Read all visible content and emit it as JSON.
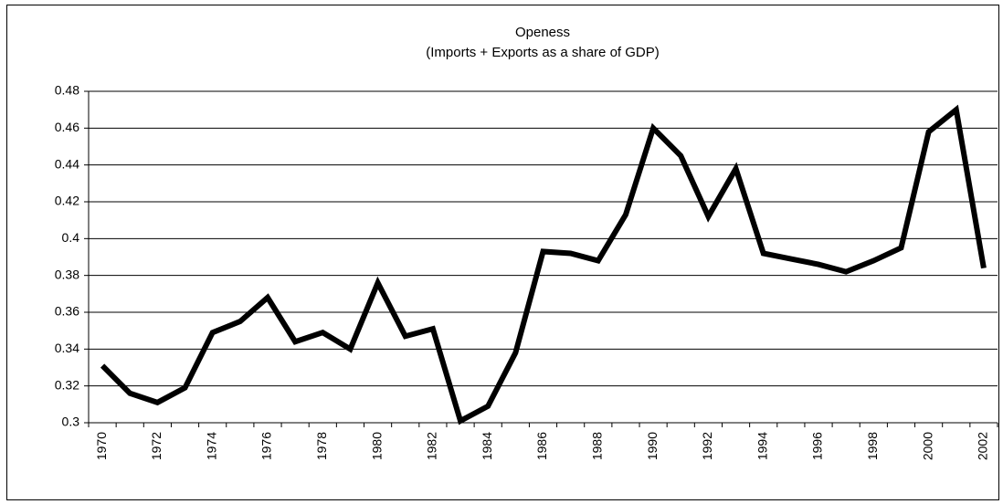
{
  "chart_data": {
    "type": "line",
    "title": "Openess",
    "subtitle": "(Imports + Exports as a share of GDP)",
    "categories": [
      "1970",
      null,
      "1972",
      null,
      "1974",
      null,
      "1976",
      null,
      "1978",
      null,
      "1980",
      null,
      "1982",
      null,
      "1984",
      null,
      "1986",
      null,
      "1988",
      null,
      "1990",
      null,
      "1992",
      null,
      "1994",
      null,
      "1996",
      null,
      "1998",
      null,
      "2000",
      null,
      "2002"
    ],
    "values": [
      0.331,
      0.316,
      0.311,
      0.319,
      0.349,
      0.355,
      0.368,
      0.344,
      0.349,
      0.34,
      0.376,
      0.347,
      0.351,
      0.301,
      0.309,
      0.338,
      0.393,
      0.392,
      0.388,
      0.413,
      0.46,
      0.445,
      0.412,
      0.438,
      0.392,
      0.389,
      0.386,
      0.382,
      0.388,
      0.395,
      0.458,
      0.47,
      0.384
    ],
    "color": "#000000",
    "ylim": [
      0.3,
      0.48
    ],
    "yticks": [
      0.3,
      0.32,
      0.34,
      0.36,
      0.38,
      0.4,
      0.42,
      0.44,
      0.46,
      0.48
    ],
    "grid": true
  }
}
